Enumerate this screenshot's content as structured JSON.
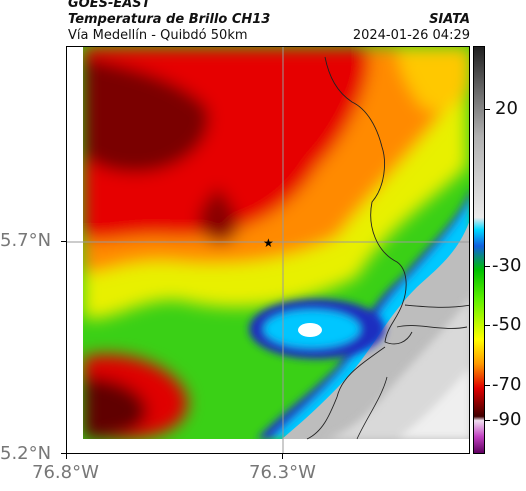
{
  "header": {
    "satellite": "GOES-EAST",
    "product": "Temperatura de Brillo CH13",
    "region": "Vía Medellín - Quibdó 50km",
    "source": "SIATA",
    "datetime": "2024-01-26 04:29"
  },
  "axes": {
    "lat_labels": [
      "5.7°N",
      "5.2°N"
    ],
    "lon_labels": [
      "76.8°W",
      "76.3°W"
    ],
    "grid": true
  },
  "map": {
    "marker": "star-icon",
    "data_color_stops": [
      "#f2f2f2",
      "#00c8ff",
      "#1e40d0",
      "#00e000",
      "#ffff00",
      "#ff8c00",
      "#e00000",
      "#300000",
      "#c040c0"
    ]
  },
  "colorbar": {
    "tick_labels": [
      "20",
      "-30",
      "-50",
      "-70",
      "-90"
    ],
    "units_hint": "brightness temperature"
  }
}
